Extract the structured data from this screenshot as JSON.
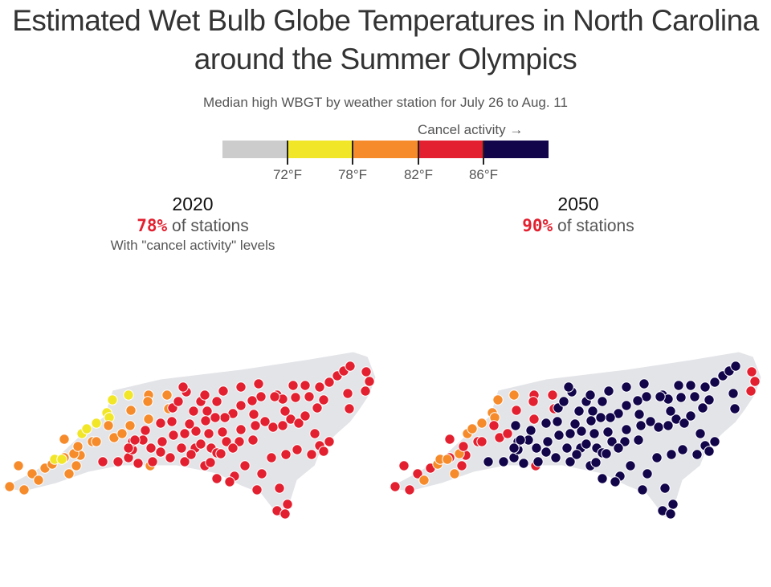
{
  "title": "Estimated Wet Bulb Globe Temperatures in North Carolina around the Summer Olympics",
  "subtitle": "Median high WBGT by weather station for July 26 to Aug. 11",
  "legend": {
    "cancel_label": "Cancel activity →",
    "bins": [
      {
        "label": "below 72°F",
        "color": "#cccccc"
      },
      {
        "label": "72–78°F",
        "color": "#f2e629"
      },
      {
        "label": "78–82°F",
        "color": "#f68b2c"
      },
      {
        "label": "82–86°F",
        "color": "#e3202f"
      },
      {
        "label": "86°F+",
        "color": "#12054a"
      }
    ],
    "ticks": [
      "72°F",
      "78°F",
      "82°F",
      "86°F"
    ]
  },
  "panels": [
    {
      "year": "2020",
      "pct": "78%",
      "pct_suffix": "of stations",
      "note": "With \"cancel activity\" levels"
    },
    {
      "year": "2050",
      "pct": "90%",
      "pct_suffix": "of stations",
      "note": ""
    }
  ],
  "map_colors": {
    "state_fill": "#e3e4e8",
    "county_line": "#ffffff",
    "dot_outline": "#ffffff"
  }
}
